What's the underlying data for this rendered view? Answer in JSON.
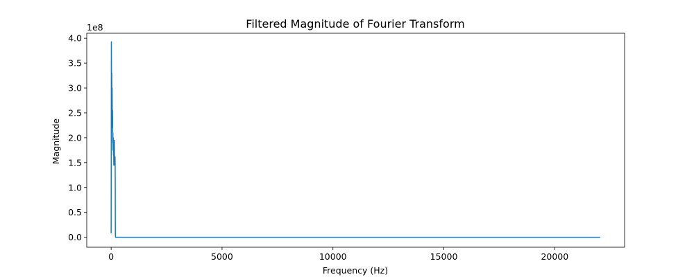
{
  "chart_data": {
    "type": "line",
    "title": "Filtered Magnitude of Fourier Transform",
    "xlabel": "Frequency (Hz)",
    "ylabel": "Magnitude",
    "y_scale_label": "1e8",
    "xlim": [
      -1100,
      23150
    ],
    "ylim": [
      -0.2,
      4.1
    ],
    "x_ticks": [
      0,
      5000,
      10000,
      15000,
      20000
    ],
    "x_tick_labels": [
      "0",
      "5000",
      "10000",
      "15000",
      "20000"
    ],
    "y_ticks": [
      0.0,
      0.5,
      1.0,
      1.5,
      2.0,
      2.5,
      3.0,
      3.5,
      4.0
    ],
    "y_tick_labels": [
      "0.0",
      "0.5",
      "1.0",
      "1.5",
      "2.0",
      "2.5",
      "3.0",
      "3.5",
      "4.0"
    ],
    "grid": false,
    "legend": "none",
    "series": [
      {
        "color": "#1f77b4",
        "x": [
          0,
          10,
          20,
          28,
          36,
          45,
          54,
          62,
          70,
          78,
          86,
          95,
          104,
          112,
          120,
          128,
          136,
          145,
          152,
          160,
          168,
          175,
          182,
          190,
          200,
          210,
          220,
          240,
          500,
          2000,
          5000,
          10000,
          15000,
          20000,
          22050
        ],
        "y": [
          0.08,
          3.93,
          3.0,
          3.3,
          2.6,
          3.0,
          2.2,
          2.55,
          1.9,
          2.1,
          1.75,
          2.0,
          1.65,
          1.85,
          1.45,
          1.7,
          1.45,
          1.95,
          1.5,
          1.6,
          1.45,
          1.62,
          1.4,
          0.05,
          0.0,
          0.0,
          0.0,
          0.0,
          0.0,
          0.0,
          0.0,
          0.0,
          0.0,
          0.0,
          0.0
        ]
      }
    ]
  }
}
